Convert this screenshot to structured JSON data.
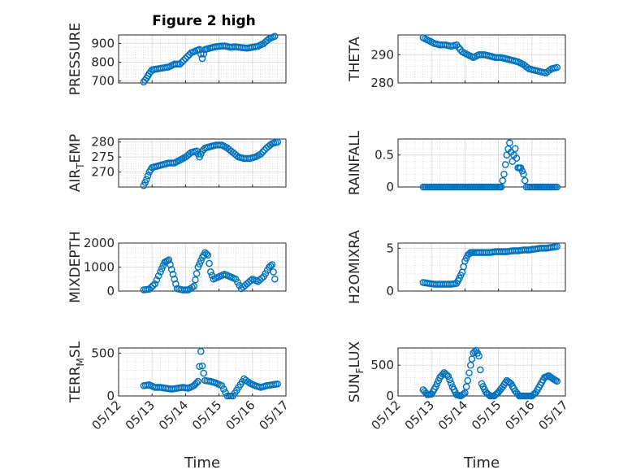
{
  "figure": {
    "title": "Figure 2 high",
    "series_color": "#0072BD"
  },
  "chart_data": [
    {
      "type": "scatter",
      "ylabel": "PRESSURE",
      "title": "Figure 2 high",
      "xlim": [
        "05/12",
        "05/17"
      ],
      "ylim": [
        690,
        945
      ],
      "yticks": [
        700,
        800,
        900
      ],
      "xticks": [
        "05/12",
        "05/13",
        "05/14",
        "05/15",
        "05/16",
        "05/17"
      ],
      "show_xticklabels": false,
      "grid": true,
      "minor_grid": true,
      "x": [
        "05/12 18:00",
        "05/12 20:00",
        "05/12 22:00",
        "05/13 00:00",
        "05/13 04:00",
        "05/13 08:00",
        "05/13 12:00",
        "05/13 16:00",
        "05/13 20:00",
        "05/14 00:00",
        "05/14 04:00",
        "05/14 08:00",
        "05/14 10:00",
        "05/14 12:00",
        "05/14 14:00",
        "05/14 16:00",
        "05/14 20:00",
        "05/15 00:00",
        "05/15 04:00",
        "05/15 08:00",
        "05/15 12:00",
        "05/15 16:00",
        "05/15 20:00",
        "05/16 00:00",
        "05/16 04:00",
        "05/16 08:00",
        "05/16 12:00",
        "05/16 16:00"
      ],
      "y": [
        695,
        715,
        740,
        760,
        765,
        770,
        775,
        790,
        790,
        820,
        850,
        862,
        868,
        820,
        868,
        872,
        880,
        885,
        887,
        880,
        882,
        878,
        875,
        880,
        885,
        900,
        925,
        938
      ]
    },
    {
      "type": "scatter",
      "ylabel": "THETA",
      "xlim": [
        "05/12",
        "05/17"
      ],
      "ylim": [
        280,
        297
      ],
      "yticks": [
        280,
        290
      ],
      "xticks": [
        "05/12",
        "05/13",
        "05/14",
        "05/15",
        "05/16",
        "05/17"
      ],
      "show_xticklabels": false,
      "grid": true,
      "minor_grid": true,
      "x": [
        "05/12 18:00",
        "05/12 22:00",
        "05/13 02:00",
        "05/13 06:00",
        "05/13 10:00",
        "05/13 14:00",
        "05/13 18:00",
        "05/13 22:00",
        "05/14 02:00",
        "05/14 06:00",
        "05/14 10:00",
        "05/14 14:00",
        "05/14 18:00",
        "05/14 22:00",
        "05/15 02:00",
        "05/15 06:00",
        "05/15 10:00",
        "05/15 14:00",
        "05/15 18:00",
        "05/15 22:00",
        "05/16 02:00",
        "05/16 06:00",
        "05/16 10:00",
        "05/16 14:00",
        "05/16 18:00"
      ],
      "y": [
        296,
        295,
        294,
        293.5,
        293.5,
        293,
        293.5,
        291,
        290,
        289,
        290,
        290,
        289.5,
        289,
        289,
        288.5,
        288,
        287.5,
        286.5,
        285,
        284.5,
        284,
        283.5,
        285,
        285.5
      ]
    },
    {
      "type": "scatter",
      "ylabel": "AIR_TEMP",
      "xlim": [
        "05/12",
        "05/17"
      ],
      "ylim": [
        265,
        281
      ],
      "yticks": [
        270,
        275,
        280
      ],
      "xticks": [
        "05/12",
        "05/13",
        "05/14",
        "05/15",
        "05/16",
        "05/17"
      ],
      "show_xticklabels": false,
      "grid": true,
      "minor_grid": true,
      "x": [
        "05/12 18:00",
        "05/12 20:00",
        "05/12 22:00",
        "05/13 00:00",
        "05/13 04:00",
        "05/13 08:00",
        "05/13 12:00",
        "05/13 16:00",
        "05/13 20:00",
        "05/14 00:00",
        "05/14 04:00",
        "05/14 08:00",
        "05/14 10:00",
        "05/14 12:00",
        "05/14 14:00",
        "05/14 18:00",
        "05/14 22:00",
        "05/15 02:00",
        "05/15 06:00",
        "05/15 10:00",
        "05/15 14:00",
        "05/15 18:00",
        "05/15 22:00",
        "05/16 02:00",
        "05/16 06:00",
        "05/16 10:00",
        "05/16 14:00",
        "05/16 18:00"
      ],
      "y": [
        265.5,
        267.5,
        270,
        271.5,
        272,
        272.5,
        273,
        273,
        274,
        275,
        276.5,
        277,
        275,
        277,
        278,
        278.5,
        279,
        279,
        278,
        276.5,
        275,
        274.5,
        274.5,
        275,
        276,
        278,
        279.5,
        280
      ]
    },
    {
      "type": "scatter",
      "ylabel": "RAINFALL",
      "xlim": [
        "05/12",
        "05/17"
      ],
      "ylim": [
        0,
        0.75
      ],
      "yticks": [
        0,
        0.5
      ],
      "ytick_labels": [
        "0",
        "0.5"
      ],
      "xticks": [
        "05/12",
        "05/13",
        "05/14",
        "05/15",
        "05/16",
        "05/17"
      ],
      "show_xticklabels": false,
      "grid": true,
      "minor_grid": true,
      "x": [
        "05/12 18:00",
        "05/13 00:00",
        "05/13 06:00",
        "05/13 12:00",
        "05/13 18:00",
        "05/14 00:00",
        "05/14 06:00",
        "05/14 12:00",
        "05/14 18:00",
        "05/15 00:00",
        "05/15 02:00",
        "05/15 04:00",
        "05/15 06:00",
        "05/15 08:00",
        "05/15 10:00",
        "05/15 12:00",
        "05/15 14:00",
        "05/15 16:00",
        "05/15 18:00",
        "05/15 20:00",
        "05/16 00:00",
        "05/16 06:00",
        "05/16 12:00",
        "05/16 18:00"
      ],
      "y": [
        0,
        0,
        0,
        0,
        0,
        0,
        0,
        0,
        0,
        0,
        0,
        0.2,
        0.5,
        0.69,
        0.4,
        0.6,
        0.3,
        0.3,
        0.2,
        0,
        0,
        0,
        0,
        0
      ]
    },
    {
      "type": "scatter",
      "ylabel": "MIXDEPTH",
      "xlim": [
        "05/12",
        "05/17"
      ],
      "ylim": [
        0,
        2000
      ],
      "yticks": [
        0,
        1000,
        2000
      ],
      "xticks": [
        "05/12",
        "05/13",
        "05/14",
        "05/15",
        "05/16",
        "05/17"
      ],
      "show_xticklabels": false,
      "grid": true,
      "minor_grid": true,
      "x": [
        "05/12 18:00",
        "05/12 22:00",
        "05/13 02:00",
        "05/13 06:00",
        "05/13 09:00",
        "05/13 12:00",
        "05/13 14:00",
        "05/13 16:00",
        "05/13 18:00",
        "05/13 22:00",
        "05/14 02:00",
        "05/14 06:00",
        "05/14 09:00",
        "05/14 12:00",
        "05/14 14:00",
        "05/14 16:00",
        "05/14 18:00",
        "05/14 20:00",
        "05/15 00:00",
        "05/15 04:00",
        "05/15 08:00",
        "05/15 12:00",
        "05/15 16:00",
        "05/15 20:00",
        "05/16 00:00",
        "05/16 04:00",
        "05/16 08:00",
        "05/16 12:00",
        "05/16 14:00",
        "05/16 16:00"
      ],
      "y": [
        50,
        80,
        300,
        800,
        1200,
        1300,
        900,
        500,
        100,
        50,
        50,
        200,
        1000,
        1400,
        1600,
        1500,
        800,
        500,
        600,
        700,
        600,
        500,
        100,
        300,
        500,
        400,
        600,
        1000,
        1100,
        500
      ]
    },
    {
      "type": "scatter",
      "ylabel": "H2OMIXRA",
      "xlim": [
        "05/12",
        "05/17"
      ],
      "ylim": [
        0,
        5.6
      ],
      "yticks": [
        0,
        5
      ],
      "xticks": [
        "05/12",
        "05/13",
        "05/14",
        "05/15",
        "05/16",
        "05/17"
      ],
      "show_xticklabels": false,
      "grid": true,
      "minor_grid": true,
      "x": [
        "05/12 18:00",
        "05/12 22:00",
        "05/13 02:00",
        "05/13 06:00",
        "05/13 10:00",
        "05/13 14:00",
        "05/13 18:00",
        "05/13 20:00",
        "05/13 22:00",
        "05/14 00:00",
        "05/14 02:00",
        "05/14 04:00",
        "05/14 06:00",
        "05/14 10:00",
        "05/14 14:00",
        "05/14 18:00",
        "05/14 22:00",
        "05/15 02:00",
        "05/15 06:00",
        "05/15 10:00",
        "05/15 14:00",
        "05/15 18:00",
        "05/15 22:00",
        "05/16 02:00",
        "05/16 06:00",
        "05/16 10:00",
        "05/16 14:00",
        "05/16 18:00"
      ],
      "y": [
        1,
        0.9,
        0.8,
        0.8,
        0.8,
        0.8,
        0.9,
        1.5,
        2.2,
        3.5,
        4.2,
        4.5,
        4.5,
        4.5,
        4.5,
        4.5,
        4.6,
        4.6,
        4.6,
        4.7,
        4.7,
        4.8,
        4.8,
        4.9,
        5,
        5,
        5.1,
        5.2
      ]
    },
    {
      "type": "scatter",
      "ylabel": "TERR_MSL",
      "xlim": [
        "05/12",
        "05/17"
      ],
      "ylim": [
        0,
        560
      ],
      "yticks": [
        0,
        500
      ],
      "xticks": [
        "05/12",
        "05/13",
        "05/14",
        "05/15",
        "05/16",
        "05/17"
      ],
      "show_xticklabels": true,
      "xlabel": "Time",
      "grid": true,
      "minor_grid": true,
      "x": [
        "05/12 18:00",
        "05/12 22:00",
        "05/13 02:00",
        "05/13 06:00",
        "05/13 10:00",
        "05/13 14:00",
        "05/13 18:00",
        "05/13 22:00",
        "05/14 02:00",
        "05/14 06:00",
        "05/14 09:00",
        "05/14 11:00",
        "05/14 12:00",
        "05/14 14:00",
        "05/14 18:00",
        "05/14 22:00",
        "05/15 02:00",
        "05/15 06:00",
        "05/15 10:00",
        "05/15 14:00",
        "05/15 18:00",
        "05/15 22:00",
        "05/16 02:00",
        "05/16 06:00",
        "05/16 10:00",
        "05/16 14:00",
        "05/16 18:00"
      ],
      "y": [
        120,
        130,
        100,
        100,
        90,
        80,
        90,
        100,
        90,
        120,
        170,
        520,
        350,
        180,
        170,
        150,
        120,
        0,
        0,
        100,
        200,
        150,
        120,
        100,
        120,
        130,
        140
      ]
    },
    {
      "type": "scatter",
      "ylabel": "SUN_FLUX",
      "xlim": [
        "05/12",
        "05/17"
      ],
      "ylim": [
        0,
        780
      ],
      "yticks": [
        0,
        500
      ],
      "xticks": [
        "05/12",
        "05/13",
        "05/14",
        "05/15",
        "05/16",
        "05/17"
      ],
      "show_xticklabels": true,
      "xlabel": "Time",
      "grid": true,
      "minor_grid": true,
      "x": [
        "05/12 18:00",
        "05/12 21:00",
        "05/13 00:00",
        "05/13 03:00",
        "05/13 06:00",
        "05/13 09:00",
        "05/13 12:00",
        "05/13 15:00",
        "05/13 18:00",
        "05/13 21:00",
        "05/14 00:00",
        "05/14 02:00",
        "05/14 04:00",
        "05/14 06:00",
        "05/14 08:00",
        "05/14 10:00",
        "05/14 12:00",
        "05/14 15:00",
        "05/14 18:00",
        "05/14 21:00",
        "05/15 00:00",
        "05/15 03:00",
        "05/15 06:00",
        "05/15 09:00",
        "05/15 12:00",
        "05/15 15:00",
        "05/15 18:00",
        "05/15 21:00",
        "05/16 00:00",
        "05/16 03:00",
        "05/16 06:00",
        "05/16 09:00",
        "05/16 12:00",
        "05/16 15:00",
        "05/16 18:00"
      ],
      "y": [
        100,
        20,
        30,
        150,
        300,
        380,
        320,
        150,
        20,
        0,
        50,
        250,
        500,
        700,
        740,
        650,
        200,
        60,
        0,
        0,
        60,
        150,
        250,
        200,
        80,
        0,
        0,
        0,
        0,
        60,
        180,
        300,
        330,
        280,
        240
      ]
    }
  ],
  "ylabel_parts": [
    {
      "base": "PRESSURE",
      "pre": "",
      "sub": "",
      "post": ""
    },
    {
      "base": "THETA",
      "pre": "",
      "sub": "",
      "post": ""
    },
    {
      "base": "",
      "pre": "AIR",
      "sub": "T",
      "post": "EMP"
    },
    {
      "base": "RAINFALL",
      "pre": "",
      "sub": "",
      "post": ""
    },
    {
      "base": "MIXDEPTH",
      "pre": "",
      "sub": "",
      "post": ""
    },
    {
      "base": "H2OMIXRA",
      "pre": "",
      "sub": "",
      "post": ""
    },
    {
      "base": "",
      "pre": "TERR",
      "sub": "M",
      "post": "SL"
    },
    {
      "base": "",
      "pre": "SUN",
      "sub": "F",
      "post": "LUX"
    }
  ]
}
